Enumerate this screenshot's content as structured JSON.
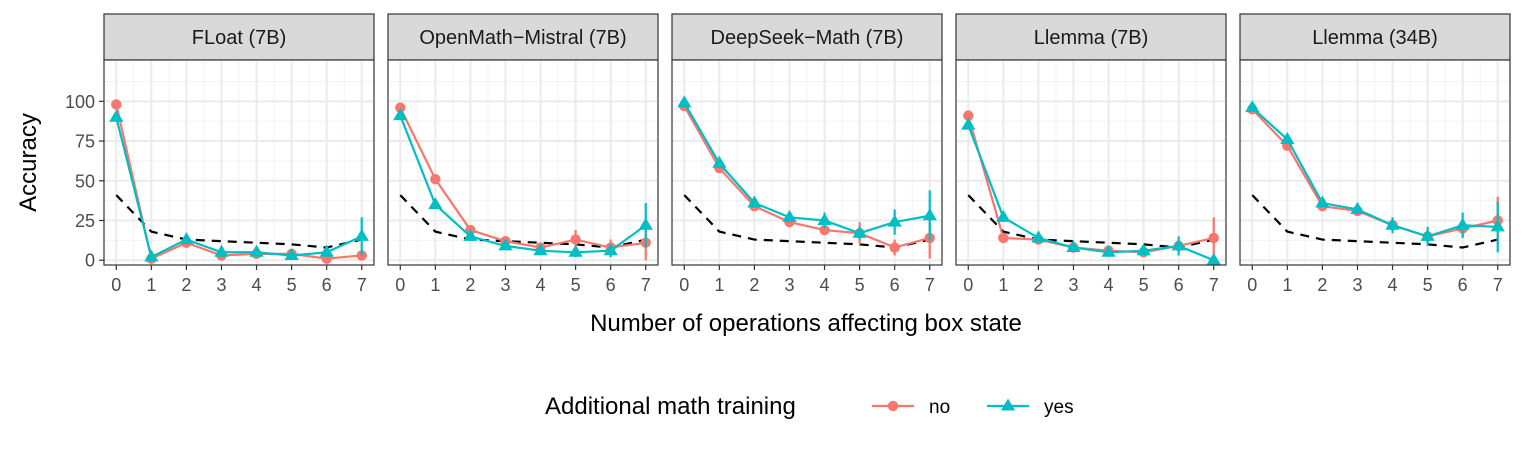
{
  "chart_data": {
    "type": "line",
    "facet_titles": [
      "FLoat (7B)",
      "OpenMath−Mistral (7B)",
      "DeepSeek−Math (7B)",
      "Llemma (7B)",
      "Llemma (34B)"
    ],
    "xlabel": "Number of operations affecting box state",
    "ylabel": "Accuracy",
    "x": [
      0,
      1,
      2,
      3,
      4,
      5,
      6,
      7
    ],
    "xticks": [
      "0",
      "1",
      "2",
      "3",
      "4",
      "5",
      "6",
      "7"
    ],
    "yticks": [
      "0",
      "25",
      "50",
      "75",
      "100"
    ],
    "ylim": [
      -3,
      126
    ],
    "xlim": [
      -0.35,
      7.35
    ],
    "grid": true,
    "legend": {
      "title": "Additional math training",
      "placement": "bottom",
      "entries": [
        {
          "label": "no",
          "color": "#F8766D",
          "marker": "circle"
        },
        {
          "label": "yes",
          "color": "#00BFC4",
          "marker": "triangle"
        }
      ]
    },
    "baseline": {
      "style": "dashed",
      "color": "#000000",
      "values": [
        41,
        18,
        13,
        12,
        11,
        10,
        8,
        13
      ]
    },
    "facets": [
      {
        "title": "FLoat (7B)",
        "series": [
          {
            "name": "no",
            "values": [
              98,
              1,
              11,
              3,
              4,
              4,
              1,
              3
            ],
            "err": [
              0,
              0,
              1,
              1,
              1,
              2,
              1,
              3
            ]
          },
          {
            "name": "yes",
            "values": [
              90,
              2,
              13,
              5,
              5,
              3,
              5,
              15
            ],
            "err": [
              0,
              0,
              1,
              1,
              1,
              1,
              2,
              12
            ]
          }
        ]
      },
      {
        "title": "OpenMath−Mistral (7B)",
        "series": [
          {
            "name": "no",
            "values": [
              96,
              51,
              19,
              12,
              8,
              13,
              8,
              11
            ],
            "err": [
              0,
              1,
              2,
              2,
              2,
              6,
              5,
              11
            ]
          },
          {
            "name": "yes",
            "values": [
              91,
              35,
              15,
              9,
              6,
              5,
              6,
              22
            ],
            "err": [
              0,
              1,
              1,
              1,
              1,
              3,
              4,
              14
            ]
          }
        ]
      },
      {
        "title": "DeepSeek−Math (7B)",
        "series": [
          {
            "name": "no",
            "values": [
              97,
              58,
              34,
              24,
              19,
              17,
              8,
              14
            ],
            "err": [
              0,
              1,
              1,
              2,
              3,
              7,
              5,
              13
            ]
          },
          {
            "name": "yes",
            "values": [
              99,
              61,
              36,
              27,
              25,
              17,
              24,
              28
            ],
            "err": [
              0,
              1,
              1,
              2,
              5,
              4,
              8,
              16
            ]
          }
        ]
      },
      {
        "title": "Llemma (7B)",
        "series": [
          {
            "name": "no",
            "values": [
              91,
              14,
              13,
              8,
              6,
              5,
              9,
              14
            ],
            "err": [
              0,
              0,
              1,
              1,
              1,
              2,
              3,
              13
            ]
          },
          {
            "name": "yes",
            "values": [
              85,
              27,
              14,
              8,
              5,
              6,
              9,
              0
            ],
            "err": [
              0,
              1,
              1,
              1,
              1,
              2,
              6,
              0
            ]
          }
        ]
      },
      {
        "title": "Llemma (34B)",
        "series": [
          {
            "name": "no",
            "values": [
              95,
              72,
              34,
              31,
              22,
              15,
              20,
              25
            ],
            "err": [
              0,
              1,
              1,
              2,
              3,
              5,
              6,
              15
            ]
          },
          {
            "name": "yes",
            "values": [
              96,
              76,
              36,
              32,
              22,
              15,
              22,
              21
            ],
            "err": [
              0,
              1,
              1,
              2,
              5,
              6,
              8,
              16
            ]
          }
        ]
      }
    ]
  }
}
